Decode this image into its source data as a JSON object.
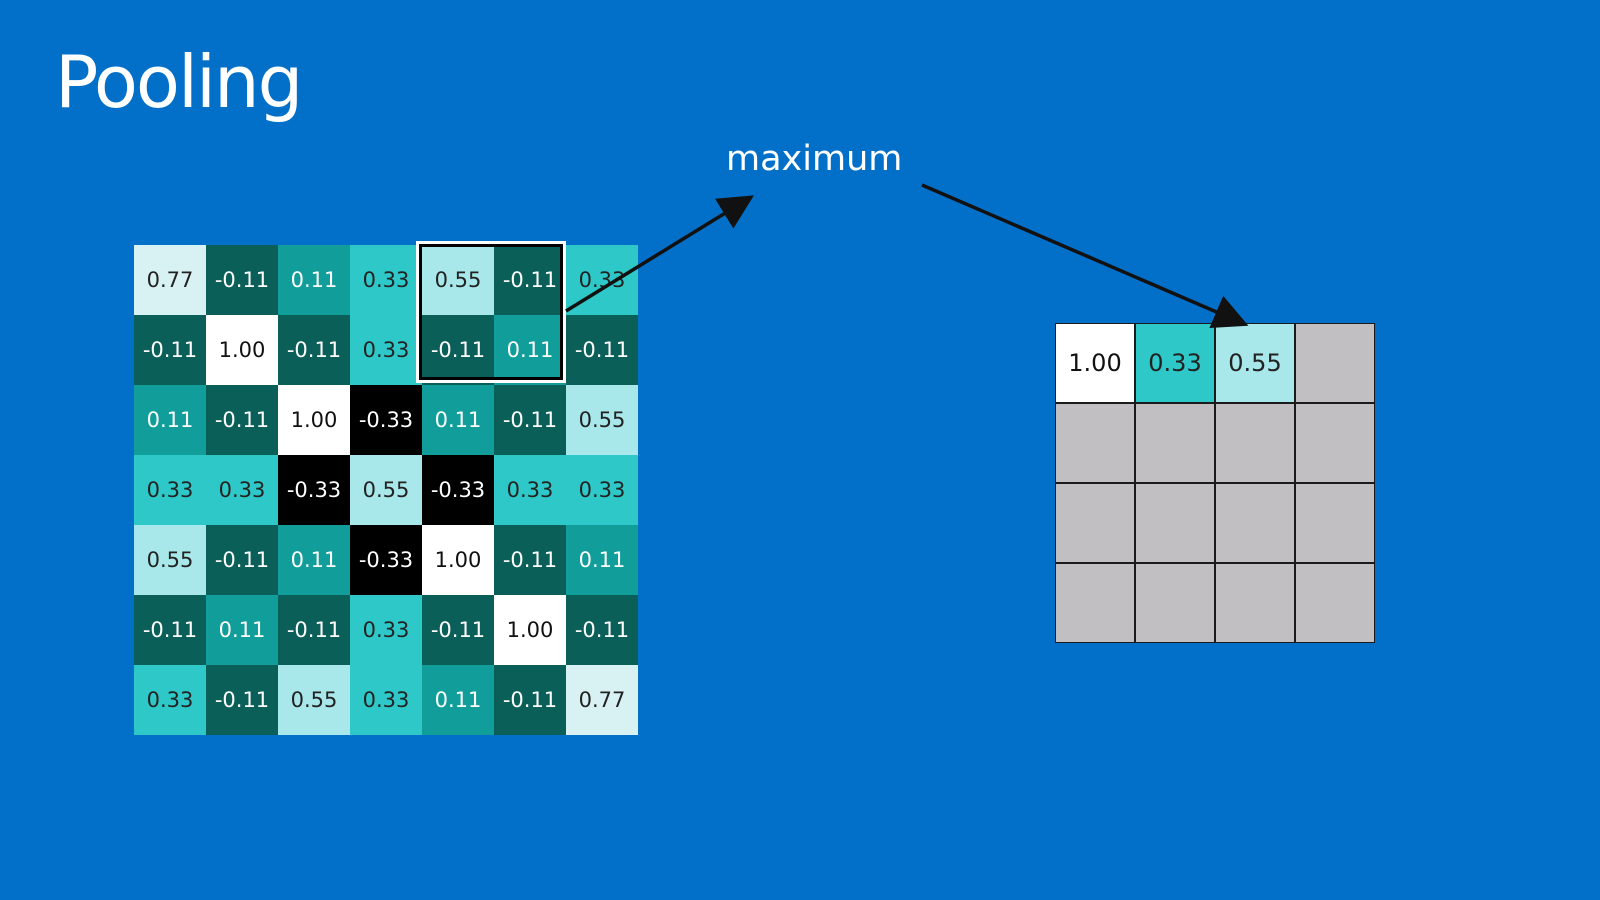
{
  "title": "Pooling",
  "operation_label": "maximum",
  "input_grid": [
    [
      "0.77",
      "-0.11",
      "0.11",
      "0.33",
      "0.55",
      "-0.11",
      "0.33"
    ],
    [
      "-0.11",
      "1.00",
      "-0.11",
      "0.33",
      "-0.11",
      "0.11",
      "-0.11"
    ],
    [
      "0.11",
      "-0.11",
      "1.00",
      "-0.33",
      "0.11",
      "-0.11",
      "0.55"
    ],
    [
      "0.33",
      "0.33",
      "-0.33",
      "0.55",
      "-0.33",
      "0.33",
      "0.33"
    ],
    [
      "0.55",
      "-0.11",
      "0.11",
      "-0.33",
      "1.00",
      "-0.11",
      "0.11"
    ],
    [
      "-0.11",
      "0.11",
      "-0.11",
      "0.33",
      "-0.11",
      "1.00",
      "-0.11"
    ],
    [
      "0.33",
      "-0.11",
      "0.55",
      "0.33",
      "0.11",
      "-0.11",
      "0.77"
    ]
  ],
  "output_grid": [
    [
      "1.00",
      "0.33",
      "0.55",
      ""
    ],
    [
      "",
      "",
      "",
      ""
    ],
    [
      "",
      "",
      "",
      ""
    ],
    [
      "",
      "",
      "",
      ""
    ]
  ],
  "colors": {
    "background": "#0270c9",
    "1.00": "#ffffff",
    "0.77": "#d8f2f3",
    "0.55": "#a8e7ea",
    "0.33": "#2ec8c9",
    "0.11": "#119e9b",
    "-0.11": "#0b5f59",
    "-0.33": "#000000",
    "empty": "#c1bfc1"
  }
}
